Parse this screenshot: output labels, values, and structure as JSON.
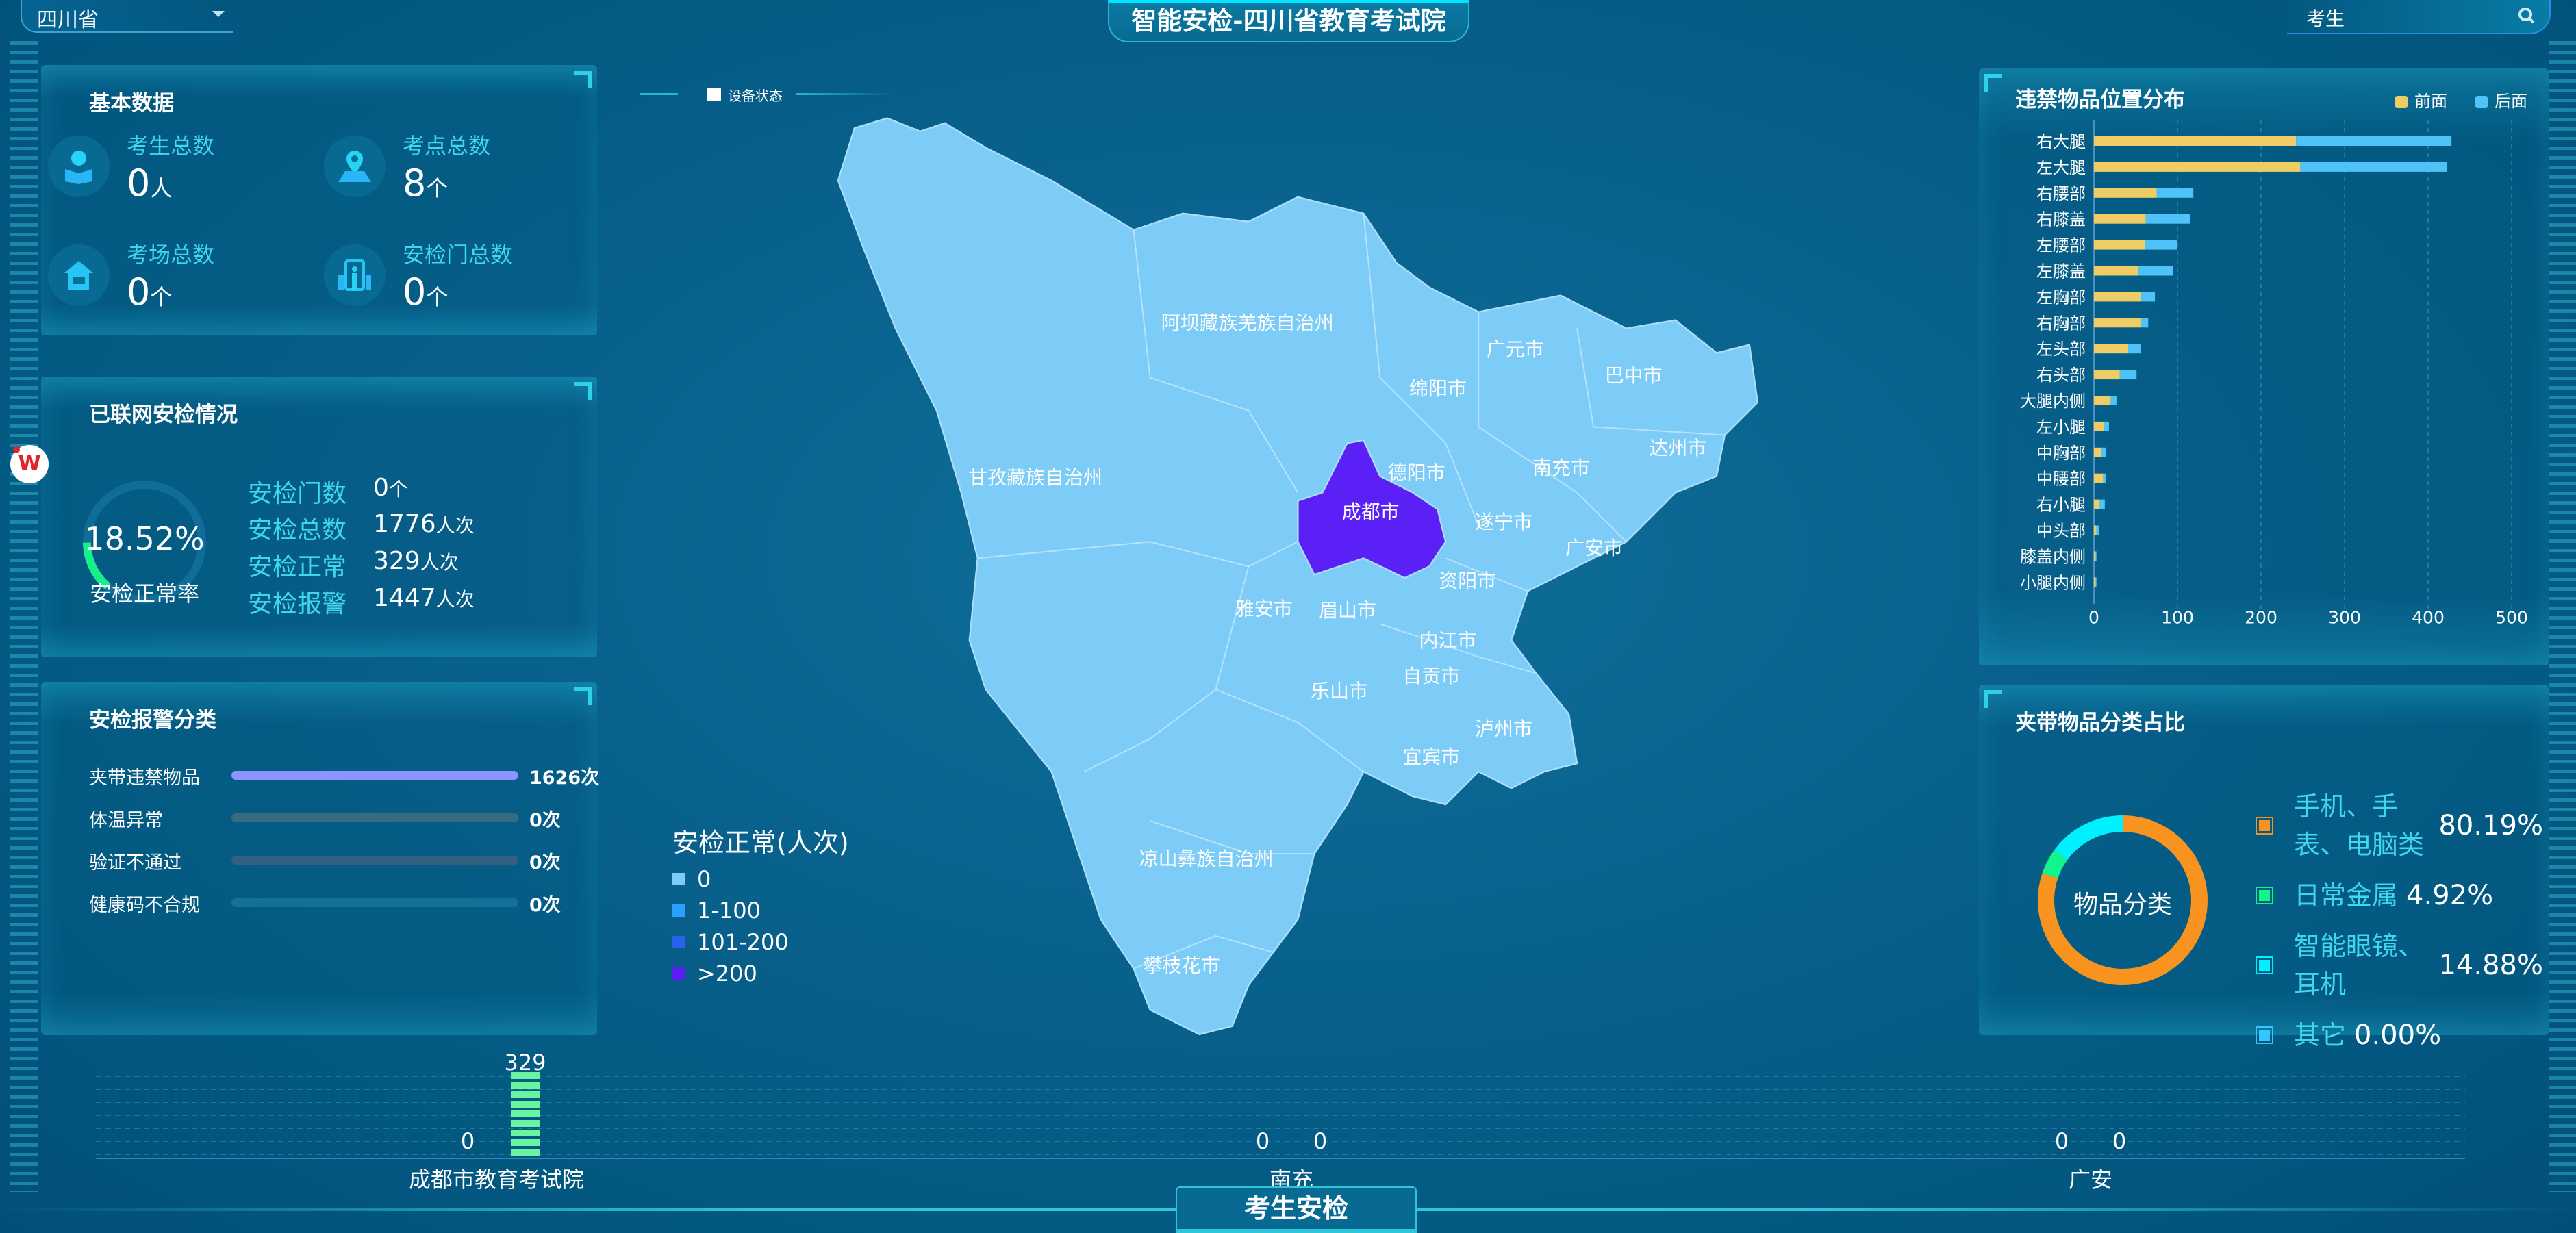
{
  "header": {
    "title": "智能安检-四川省教育考试院",
    "province_select": "四川省",
    "search_value": "考生",
    "search_icon": "search-icon",
    "dropdown_icon": "caret-down-icon"
  },
  "basic": {
    "title": "基本数据",
    "items": [
      {
        "label": "考生总数",
        "value": "0",
        "unit": "人",
        "icon": "student-reading-icon"
      },
      {
        "label": "考点总数",
        "value": "8",
        "unit": "个",
        "icon": "location-pin-icon"
      },
      {
        "label": "考场总数",
        "value": "0",
        "unit": "个",
        "icon": "exam-room-icon"
      },
      {
        "label": "安检门总数",
        "value": "0",
        "unit": "个",
        "icon": "security-gate-icon"
      }
    ]
  },
  "network": {
    "title": "已联网安检情况",
    "rate": "18.52%",
    "rate_value": 18.52,
    "rate_label": "安检正常率",
    "rows": [
      {
        "label": "安检门数",
        "value": "0",
        "unit": "个"
      },
      {
        "label": "安检总数",
        "value": "1776",
        "unit": "人次"
      },
      {
        "label": "安检正常",
        "value": "329",
        "unit": "人次"
      },
      {
        "label": "安检报警",
        "value": "1447",
        "unit": "人次"
      }
    ]
  },
  "alarm": {
    "title": "安检报警分类",
    "rows": [
      {
        "label": "夹带违禁物品",
        "value": "1626次",
        "fraction": 1,
        "color": "#8c95ff"
      },
      {
        "label": "体温异常",
        "value": "0次",
        "fraction": 0,
        "color": "#366b80"
      },
      {
        "label": "验证不通过",
        "value": "0次",
        "fraction": 0,
        "color": "#33607f"
      },
      {
        "label": "健康码不合规",
        "value": "0次",
        "fraction": 0,
        "color": "#137096"
      }
    ]
  },
  "map": {
    "device_status": "设备状态",
    "legend_title": "安检正常(人次)",
    "legend": [
      {
        "label": "0",
        "color": "#7dccf8"
      },
      {
        "label": "1-100",
        "color": "#2ba0ff"
      },
      {
        "label": "101-200",
        "color": "#2a63e8"
      },
      {
        "label": ">200",
        "color": "#5a1ff0"
      }
    ],
    "regions": [
      {
        "name": "阿坝藏族羌族自治州"
      },
      {
        "name": "广元市"
      },
      {
        "name": "巴中市"
      },
      {
        "name": "绵阳市"
      },
      {
        "name": "达州市"
      },
      {
        "name": "甘孜藏族自治州"
      },
      {
        "name": "德阳市"
      },
      {
        "name": "南充市"
      },
      {
        "name": "成都市",
        "highlight": ">200"
      },
      {
        "name": "遂宁市"
      },
      {
        "name": "广安市"
      },
      {
        "name": "资阳市"
      },
      {
        "name": "雅安市"
      },
      {
        "name": "眉山市"
      },
      {
        "name": "内江市"
      },
      {
        "name": "自贡市"
      },
      {
        "name": "乐山市"
      },
      {
        "name": "泸州市"
      },
      {
        "name": "宜宾市"
      },
      {
        "name": "凉山彝族自治州"
      },
      {
        "name": "攀枝花市"
      }
    ]
  },
  "bottom_tab": "考生安检",
  "chart_data": [
    {
      "type": "bar",
      "orientation": "horizontal",
      "stacked": true,
      "title": "违禁物品位置分布",
      "legend_placement": "top-right",
      "categories": [
        "右大腿",
        "左大腿",
        "右腰部",
        "右膝盖",
        "左腰部",
        "左膝盖",
        "左胸部",
        "右胸部",
        "左头部",
        "右头部",
        "大腿内侧",
        "左小腿",
        "中胸部",
        "中腰部",
        "右小腿",
        "中头部",
        "膝盖内侧",
        "小腿内侧"
      ],
      "series": [
        {
          "name": "前面",
          "color": "#f0cd64",
          "values": [
            242,
            247,
            75,
            62,
            61,
            53,
            56,
            56,
            41,
            31,
            20,
            12,
            9,
            11,
            6,
            3,
            2,
            2
          ]
        },
        {
          "name": "后面",
          "color": "#4fc3f7",
          "values": [
            186,
            176,
            44,
            53,
            39,
            42,
            17,
            9,
            15,
            20,
            7,
            6,
            5,
            3,
            7,
            3,
            1,
            1
          ]
        }
      ],
      "xlim": [
        0,
        500
      ],
      "xticks": [
        "0",
        "100",
        "200",
        "300",
        "400",
        "500"
      ],
      "grid": true
    },
    {
      "type": "pie",
      "donut": true,
      "title": "夹带物品分类占比",
      "center_label": "物品分类",
      "slices": [
        {
          "label": "手机、手表、电脑类",
          "value": 80.19,
          "display": "80.19%",
          "color": "#f7931e"
        },
        {
          "label": "日常金属",
          "value": 4.92,
          "display": "4.92%",
          "color": "#12f58a"
        },
        {
          "label": "智能眼镜、耳机",
          "value": 14.88,
          "display": "14.88%",
          "color": "#00f0ff"
        },
        {
          "label": "其它",
          "value": 0,
          "display": "0.00%",
          "color": "#33c7ff"
        }
      ]
    },
    {
      "type": "bar",
      "grid": true,
      "categories": [
        "成都市教育考试院",
        "南充",
        "广安"
      ],
      "series": [
        {
          "values": [
            0,
            0,
            0
          ]
        },
        {
          "values": [
            329,
            0,
            0
          ],
          "color": "#69f5a0"
        }
      ]
    }
  ]
}
